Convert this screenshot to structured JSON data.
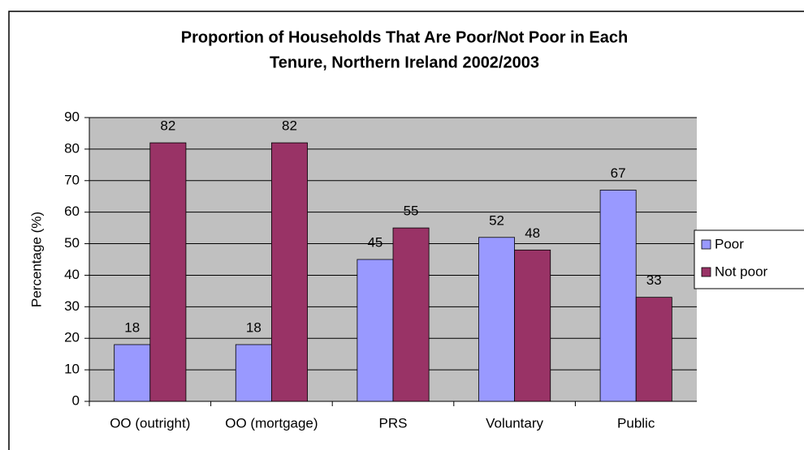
{
  "chart_data": {
    "type": "bar",
    "title": [
      "Proportion of Households That Are Poor/Not Poor in Each",
      "Tenure, Northern Ireland 2002/2003"
    ],
    "y_label": "Percentage (%)",
    "categories": [
      "OO (outright)",
      "OO (mortgage)",
      "PRS",
      "Voluntary",
      "Public"
    ],
    "series": [
      {
        "name": "Poor",
        "color": "#9999ff",
        "values": [
          18,
          18,
          45,
          52,
          67
        ]
      },
      {
        "name": "Not poor",
        "color": "#993366",
        "values": [
          82,
          82,
          55,
          48,
          33
        ]
      }
    ],
    "ylim": [
      0,
      90
    ],
    "yticks": [
      0,
      10,
      20,
      30,
      40,
      50,
      60,
      70,
      80,
      90
    ],
    "grid": true,
    "legend": "right"
  }
}
